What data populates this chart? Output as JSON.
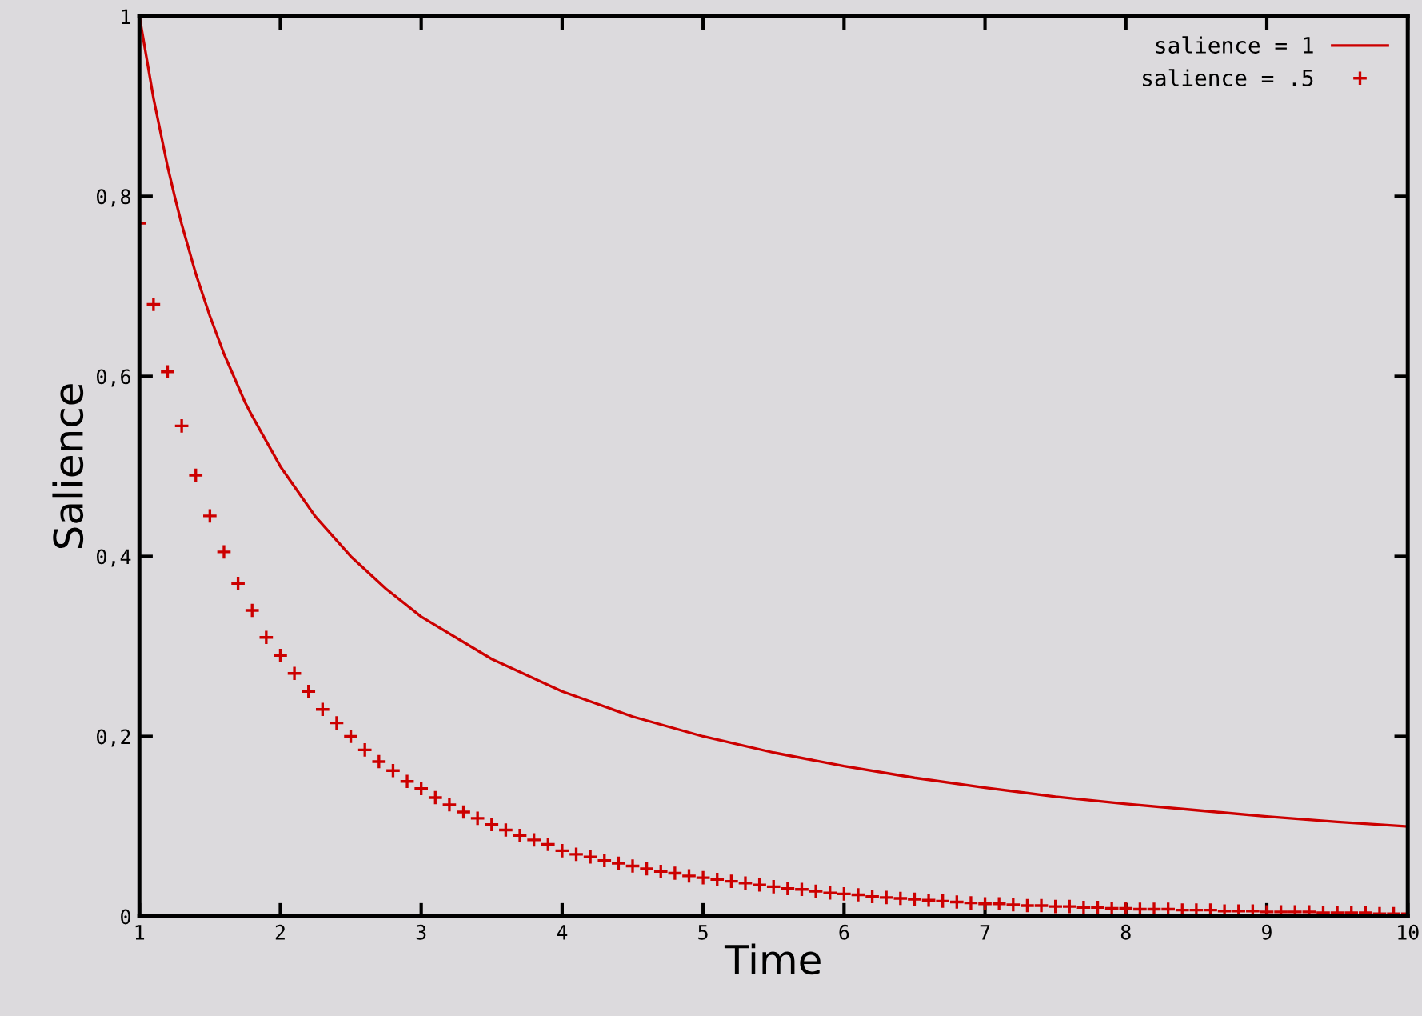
{
  "chart_data": {
    "type": "line",
    "xlabel": "Time",
    "ylabel": "Salience",
    "xlim": [
      1,
      10
    ],
    "ylim": [
      0,
      1
    ],
    "xticks": [
      1,
      2,
      3,
      4,
      5,
      6,
      7,
      8,
      9,
      10
    ],
    "yticks": [
      0,
      {
        "value": 0.2,
        "label": "0,2"
      },
      {
        "value": 0.4,
        "label": "0,4"
      },
      {
        "value": 0.6,
        "label": "0,6"
      },
      {
        "value": 0.8,
        "label": "0,8"
      },
      1
    ],
    "grid": false,
    "legend": "top right",
    "series": [
      {
        "name": "salience = 1",
        "color": "#cc0000",
        "marker": "none",
        "line_style": "solid",
        "x": [
          1,
          1.1,
          1.2,
          1.25,
          1.3,
          1.4,
          1.5,
          1.6,
          1.75,
          1.8,
          2,
          2.25,
          2.5,
          2.75,
          3,
          3.5,
          4,
          4.5,
          5,
          5.5,
          6,
          6.5,
          7,
          7.5,
          8,
          8.5,
          9,
          9.5,
          10
        ],
        "values": [
          1,
          0.909,
          0.833,
          0.8,
          0.769,
          0.714,
          0.667,
          0.625,
          0.571,
          0.556,
          0.5,
          0.444,
          0.4,
          0.364,
          0.333,
          0.286,
          0.25,
          0.222,
          0.2,
          0.182,
          0.167,
          0.154,
          0.143,
          0.133,
          0.125,
          0.118,
          0.111,
          0.105,
          0.1
        ]
      },
      {
        "name": "salience = .5",
        "type": "scatter",
        "color": "#cc0000",
        "marker": "cross",
        "x": [
          1,
          1.1,
          1.2,
          1.3,
          1.4,
          1.5,
          1.6,
          1.7,
          1.8,
          1.9,
          2,
          2.1,
          2.2,
          2.3,
          2.4,
          2.5,
          2.6,
          2.7,
          2.8,
          2.9,
          3,
          3.1,
          3.2,
          3.3,
          3.4,
          3.5,
          3.6,
          3.7,
          3.8,
          3.9,
          4,
          4.1,
          4.2,
          4.3,
          4.4,
          4.5,
          4.6,
          4.7,
          4.8,
          4.9,
          5,
          5.1,
          5.2,
          5.3,
          5.4,
          5.5,
          5.6,
          5.7,
          5.8,
          5.9,
          6,
          6.1,
          6.2,
          6.3,
          6.4,
          6.5,
          6.6,
          6.7,
          6.8,
          6.9,
          7,
          7.1,
          7.2,
          7.3,
          7.4,
          7.5,
          7.6,
          7.7,
          7.8,
          7.9,
          8,
          8.1,
          8.2,
          8.3,
          8.4,
          8.5,
          8.6,
          8.7,
          8.8,
          8.9,
          9,
          9.1,
          9.2,
          9.3,
          9.4,
          9.5,
          9.6,
          9.7,
          9.8,
          9.9,
          10
        ],
        "values": [
          0.77,
          0.68,
          0.605,
          0.545,
          0.49,
          0.445,
          0.405,
          0.37,
          0.34,
          0.31,
          0.29,
          0.27,
          0.25,
          0.23,
          0.215,
          0.2,
          0.185,
          0.172,
          0.162,
          0.15,
          0.142,
          0.132,
          0.124,
          0.116,
          0.109,
          0.102,
          0.096,
          0.09,
          0.085,
          0.08,
          0.073,
          0.069,
          0.066,
          0.062,
          0.059,
          0.056,
          0.053,
          0.05,
          0.048,
          0.045,
          0.043,
          0.041,
          0.039,
          0.037,
          0.035,
          0.033,
          0.031,
          0.03,
          0.028,
          0.026,
          0.025,
          0.024,
          0.022,
          0.021,
          0.02,
          0.019,
          0.018,
          0.017,
          0.016,
          0.015,
          0.014,
          0.014,
          0.013,
          0.012,
          0.012,
          0.011,
          0.011,
          0.01,
          0.01,
          0.009,
          0.009,
          0.008,
          0.008,
          0.008,
          0.007,
          0.007,
          0.007,
          0.006,
          0.006,
          0.006,
          0.005,
          0.005,
          0.005,
          0.005,
          0.004,
          0.004,
          0.004,
          0.004,
          0.003,
          0.003,
          0.003
        ]
      }
    ]
  }
}
